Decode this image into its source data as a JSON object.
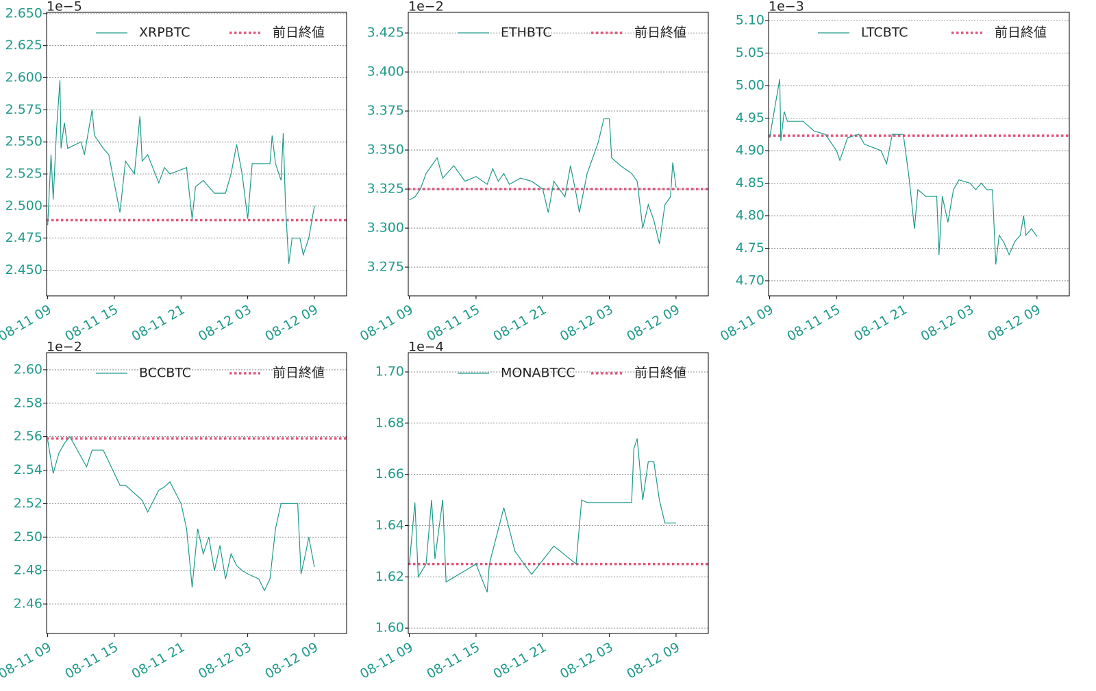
{
  "chart_data": [
    {
      "type": "line",
      "offset_label": "1e−5",
      "xlim": [
        -0.1,
        26.9
      ],
      "ylim": [
        2.43,
        2.651
      ],
      "xticks": [
        {
          "value": 0,
          "label": "08-11 09"
        },
        {
          "value": 6,
          "label": "08-11 15"
        },
        {
          "value": 12,
          "label": "08-11 21"
        },
        {
          "value": 18,
          "label": "08-12 03"
        },
        {
          "value": 24,
          "label": "08-12 09"
        }
      ],
      "yticks": [
        {
          "value": 2.45,
          "label": "2.450"
        },
        2.475,
        {
          "value": 2.5,
          "label": "2.500"
        },
        2.525,
        {
          "value": 2.55,
          "label": "2.550"
        },
        2.575,
        {
          "value": 2.6,
          "label": "2.600"
        },
        2.625,
        {
          "value": 2.65,
          "label": "2.650"
        }
      ],
      "grid": true,
      "x": [
        0,
        0.3,
        0.5,
        0.8,
        1.1,
        1.2,
        1.5,
        1.8,
        3,
        3.3,
        4,
        4.2,
        5,
        5.5,
        6.5,
        7,
        7.8,
        8.3,
        8.5,
        9,
        10,
        10.5,
        11,
        12.5,
        13,
        13.3,
        14,
        15,
        16,
        16.5,
        17,
        17.5,
        18,
        18.4,
        19,
        20,
        20.2,
        20.5,
        21,
        21.2,
        21.4,
        21.7,
        22,
        22.7,
        23,
        23.5,
        23.8,
        24
      ],
      "series": [
        {
          "name": "XRPBTC",
          "color": "#1f9a8a",
          "values": [
            2.485,
            2.54,
            2.505,
            2.56,
            2.598,
            2.545,
            2.565,
            2.545,
            2.55,
            2.54,
            2.575,
            2.555,
            2.545,
            2.54,
            2.495,
            2.535,
            2.525,
            2.57,
            2.535,
            2.54,
            2.518,
            2.53,
            2.525,
            2.53,
            2.49,
            2.515,
            2.52,
            2.51,
            2.51,
            2.525,
            2.548,
            2.525,
            2.49,
            2.533,
            2.533,
            2.533,
            2.555,
            2.533,
            2.52,
            2.557,
            2.5,
            2.455,
            2.475,
            2.475,
            2.462,
            2.475,
            2.49,
            2.5
          ]
        }
      ],
      "hline": {
        "name": "前日終値",
        "value": 2.489,
        "color": "#e0557a"
      }
    },
    {
      "type": "line",
      "offset_label": "1e−2",
      "xlim": [
        -0.1,
        26.9
      ],
      "ylim": [
        3.2566,
        3.4382
      ],
      "xticks": [
        {
          "value": 0,
          "label": "08-11 09"
        },
        {
          "value": 6,
          "label": "08-11 15"
        },
        {
          "value": 12,
          "label": "08-11 21"
        },
        {
          "value": 18,
          "label": "08-12 03"
        },
        {
          "value": 24,
          "label": "08-12 09"
        }
      ],
      "yticks": [
        3.275,
        {
          "value": 3.3,
          "label": "3.300"
        },
        3.325,
        {
          "value": 3.35,
          "label": "3.350"
        },
        3.375,
        {
          "value": 3.4,
          "label": "3.400"
        },
        3.425
      ],
      "grid": true,
      "x": [
        0,
        0.5,
        1,
        1.5,
        2,
        2.5,
        3,
        4,
        5,
        6,
        7,
        7.5,
        8,
        8.5,
        9,
        10,
        11,
        12,
        12.5,
        13,
        14,
        14.5,
        15,
        15.3,
        16,
        17,
        17.5,
        18,
        18.2,
        19,
        20,
        20.5,
        21,
        21.5,
        22,
        22.5,
        23,
        23.5,
        23.7,
        24
      ],
      "series": [
        {
          "name": "ETHBTC",
          "color": "#1f9a8a",
          "values": [
            3.318,
            3.32,
            3.325,
            3.335,
            3.34,
            3.345,
            3.332,
            3.34,
            3.33,
            3.333,
            3.328,
            3.338,
            3.33,
            3.335,
            3.328,
            3.332,
            3.33,
            3.325,
            3.31,
            3.33,
            3.32,
            3.34,
            3.322,
            3.31,
            3.335,
            3.355,
            3.37,
            3.37,
            3.345,
            3.34,
            3.335,
            3.33,
            3.3,
            3.315,
            3.305,
            3.29,
            3.315,
            3.32,
            3.342,
            3.326
          ]
        }
      ],
      "hline": {
        "name": "前日終値",
        "value": 3.325,
        "color": "#e0557a"
      }
    },
    {
      "type": "line",
      "offset_label": "1e−3",
      "xlim": [
        -0.1,
        26.9
      ],
      "ylim": [
        4.6768,
        5.1126
      ],
      "xticks": [
        {
          "value": 0,
          "label": "08-11 09"
        },
        {
          "value": 6,
          "label": "08-11 15"
        },
        {
          "value": 12,
          "label": "08-11 21"
        },
        {
          "value": 18,
          "label": "08-12 03"
        },
        {
          "value": 24,
          "label": "08-12 09"
        }
      ],
      "yticks": [
        {
          "value": 4.7,
          "label": "4.70"
        },
        4.75,
        {
          "value": 4.8,
          "label": "4.80"
        },
        4.85,
        {
          "value": 4.9,
          "label": "4.90"
        },
        4.95,
        {
          "value": 5,
          "label": "5.00"
        },
        5.05,
        {
          "value": 5.1,
          "label": "5.10"
        }
      ],
      "grid": true,
      "x": [
        0,
        0.7,
        0.9,
        1,
        1.3,
        1.6,
        3,
        4,
        5,
        6,
        6.3,
        7,
        8,
        8.5,
        10,
        10.5,
        11,
        12,
        12.5,
        13,
        13.3,
        14,
        15,
        15.2,
        15.5,
        16,
        16.5,
        17,
        18,
        18.5,
        19,
        19.5,
        20,
        20.3,
        20.6,
        21,
        21.5,
        22,
        22.5,
        22.8,
        23,
        23.5,
        24
      ],
      "series": [
        {
          "name": "LTCBTC",
          "color": "#1f9a8a",
          "values": [
            4.92,
            4.99,
            5.01,
            4.915,
            4.96,
            4.945,
            4.945,
            4.93,
            4.925,
            4.9,
            4.885,
            4.92,
            4.925,
            4.91,
            4.9,
            4.88,
            4.925,
            4.925,
            4.86,
            4.78,
            4.84,
            4.83,
            4.83,
            4.74,
            4.83,
            4.79,
            4.84,
            4.855,
            4.85,
            4.84,
            4.85,
            4.84,
            4.84,
            4.725,
            4.77,
            4.76,
            4.74,
            4.76,
            4.77,
            4.8,
            4.77,
            4.78,
            4.768
          ]
        }
      ],
      "hline": {
        "name": "前日終値",
        "value": 4.923,
        "color": "#e0557a"
      }
    },
    {
      "type": "line",
      "offset_label": "1e−2",
      "xlim": [
        -0.1,
        26.9
      ],
      "ylim": [
        2.4424,
        2.6102
      ],
      "xticks": [
        {
          "value": 0,
          "label": "08-11 09"
        },
        {
          "value": 6,
          "label": "08-11 15"
        },
        {
          "value": 12,
          "label": "08-11 21"
        },
        {
          "value": 18,
          "label": "08-12 03"
        },
        {
          "value": 24,
          "label": "08-12 09"
        }
      ],
      "yticks": [
        2.46,
        2.48,
        {
          "value": 2.5,
          "label": "2.50"
        },
        2.52,
        2.54,
        2.56,
        2.58,
        {
          "value": 2.6,
          "label": "2.60"
        }
      ],
      "grid": true,
      "x": [
        0,
        0.5,
        1,
        1.5,
        2,
        3,
        3.5,
        4,
        5,
        5.5,
        6.5,
        7,
        8.5,
        9,
        10,
        10.5,
        11,
        12,
        12.5,
        13,
        13.5,
        14,
        14.5,
        15,
        15.5,
        16,
        16.5,
        17,
        17.5,
        18,
        19,
        19.5,
        20,
        20.5,
        21,
        22,
        22.5,
        22.8,
        23.2,
        23.5,
        24
      ],
      "series": [
        {
          "name": "BCCBTC",
          "color": "#1f9a8a",
          "values": [
            2.558,
            2.538,
            2.55,
            2.556,
            2.56,
            2.548,
            2.542,
            2.552,
            2.552,
            2.545,
            2.531,
            2.531,
            2.522,
            2.515,
            2.528,
            2.53,
            2.533,
            2.52,
            2.505,
            2.47,
            2.505,
            2.49,
            2.5,
            2.48,
            2.495,
            2.475,
            2.49,
            2.483,
            2.48,
            2.478,
            2.475,
            2.468,
            2.475,
            2.505,
            2.52,
            2.52,
            2.52,
            2.478,
            2.49,
            2.5,
            2.482
          ]
        }
      ],
      "hline": {
        "name": "前日終値",
        "value": 2.559,
        "color": "#e0557a"
      }
    },
    {
      "type": "line",
      "offset_label": "1e−4",
      "xlim": [
        -0.1,
        26.9
      ],
      "ylim": [
        1.5979,
        1.7075
      ],
      "xticks": [
        {
          "value": 0,
          "label": "08-11 09"
        },
        {
          "value": 6,
          "label": "08-11 15"
        },
        {
          "value": 12,
          "label": "08-11 21"
        },
        {
          "value": 18,
          "label": "08-12 03"
        },
        {
          "value": 24,
          "label": "08-12 09"
        }
      ],
      "yticks": [
        {
          "value": 1.6,
          "label": "1.60"
        },
        1.62,
        1.64,
        1.66,
        1.68,
        {
          "value": 1.7,
          "label": "1.70"
        }
      ],
      "grid": true,
      "x": [
        0,
        0.5,
        0.8,
        1.5,
        2,
        2.3,
        3,
        3.3,
        6,
        7,
        7.2,
        8.5,
        9.5,
        11,
        13,
        15,
        15.5,
        16,
        17,
        20,
        20.2,
        20.5,
        21,
        21.5,
        22,
        22.5,
        23,
        24
      ],
      "series": [
        {
          "name": "MONABTCC",
          "color": "#1f9a8a",
          "values": [
            1.625,
            1.649,
            1.62,
            1.625,
            1.65,
            1.627,
            1.65,
            1.618,
            1.625,
            1.614,
            1.625,
            1.647,
            1.63,
            1.621,
            1.632,
            1.625,
            1.65,
            1.649,
            1.649,
            1.649,
            1.67,
            1.674,
            1.65,
            1.665,
            1.665,
            1.65,
            1.641,
            1.641
          ]
        }
      ],
      "hline": {
        "name": "前日終値",
        "value": 1.625,
        "color": "#e0557a"
      }
    }
  ]
}
